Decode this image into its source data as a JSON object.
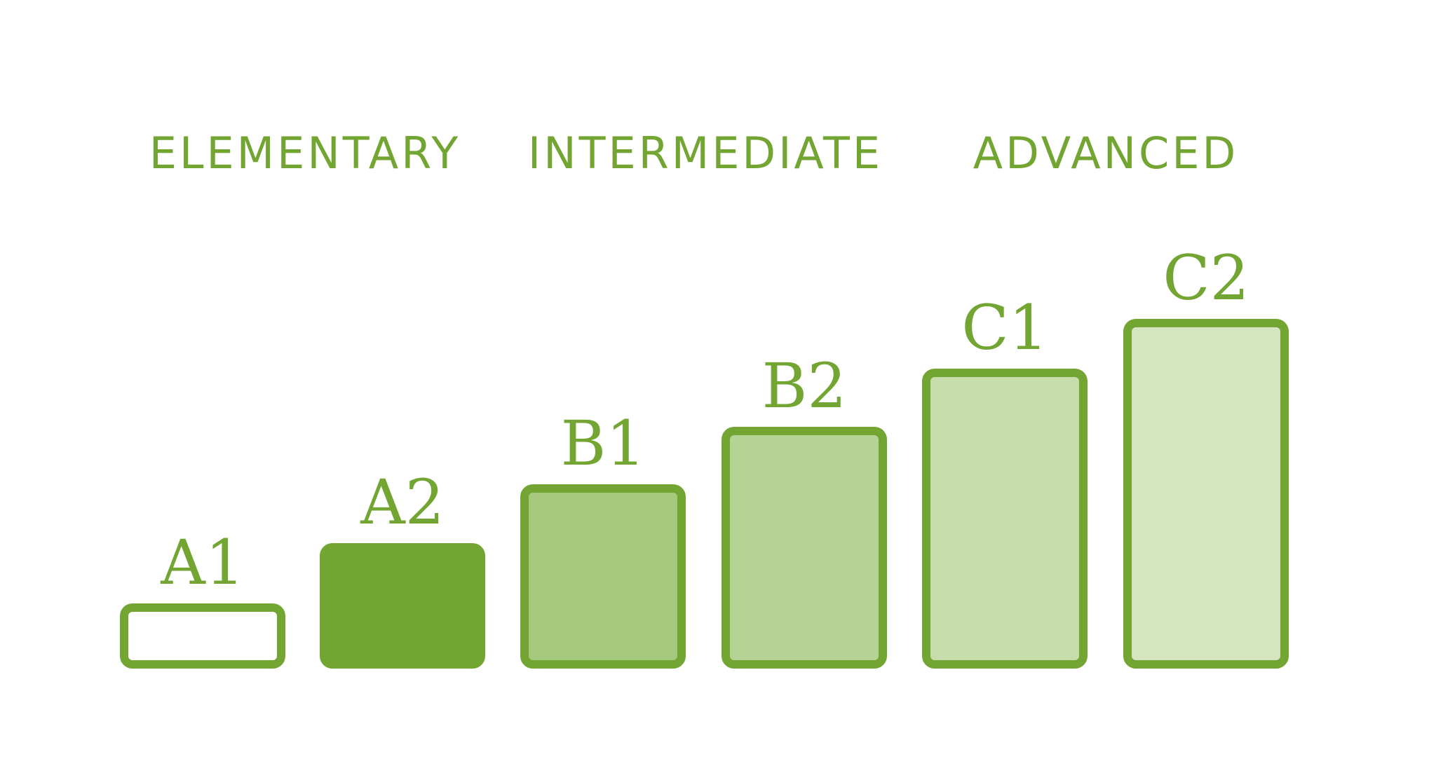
{
  "groups": [
    "ELEMENTARY",
    "INTERMEDIATE",
    "ADVANCED"
  ],
  "levels": [
    "A1",
    "A2",
    "B1",
    "B2",
    "C1",
    "C2"
  ]
}
